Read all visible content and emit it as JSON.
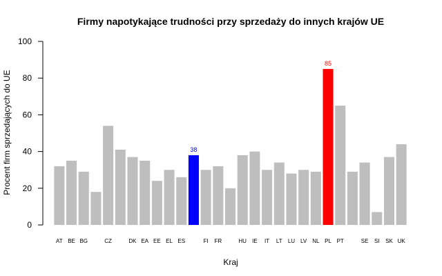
{
  "chart_data": {
    "type": "bar",
    "title": "Firmy napotykające trudności przy sprzedaży do innych krajów UE",
    "xlabel": "Kraj",
    "ylabel": "Procent firm sprzedających do UE",
    "ylim": [
      0,
      100
    ],
    "yticks": [
      "0",
      "20",
      "40",
      "60",
      "80",
      "100"
    ],
    "grid": false,
    "categories": [
      "AT",
      "BE",
      "BG",
      "",
      "CZ",
      "",
      "DK",
      "EA",
      "EE",
      "EL",
      "ES",
      "",
      "FI",
      "FR",
      "",
      "HU",
      "IE",
      "IT",
      "LT",
      "LU",
      "LV",
      "NL",
      "PL",
      "PT",
      "",
      "SE",
      "SI",
      "SK",
      "UK"
    ],
    "values": [
      32,
      35,
      29,
      18,
      54,
      41,
      37,
      35,
      24,
      30,
      26,
      38,
      30,
      32,
      20,
      38,
      40,
      30,
      34,
      28,
      30,
      29,
      85,
      65,
      29,
      34,
      7,
      37,
      44
    ],
    "colors": {
      "default": "#bebebe",
      "highlight_blue": "#0000ff",
      "highlight_red": "#ff0000"
    },
    "highlights": [
      {
        "index": 11,
        "color": "#0000ff",
        "label": "38"
      },
      {
        "index": 22,
        "color": "#ff0000",
        "label": "85"
      }
    ]
  }
}
